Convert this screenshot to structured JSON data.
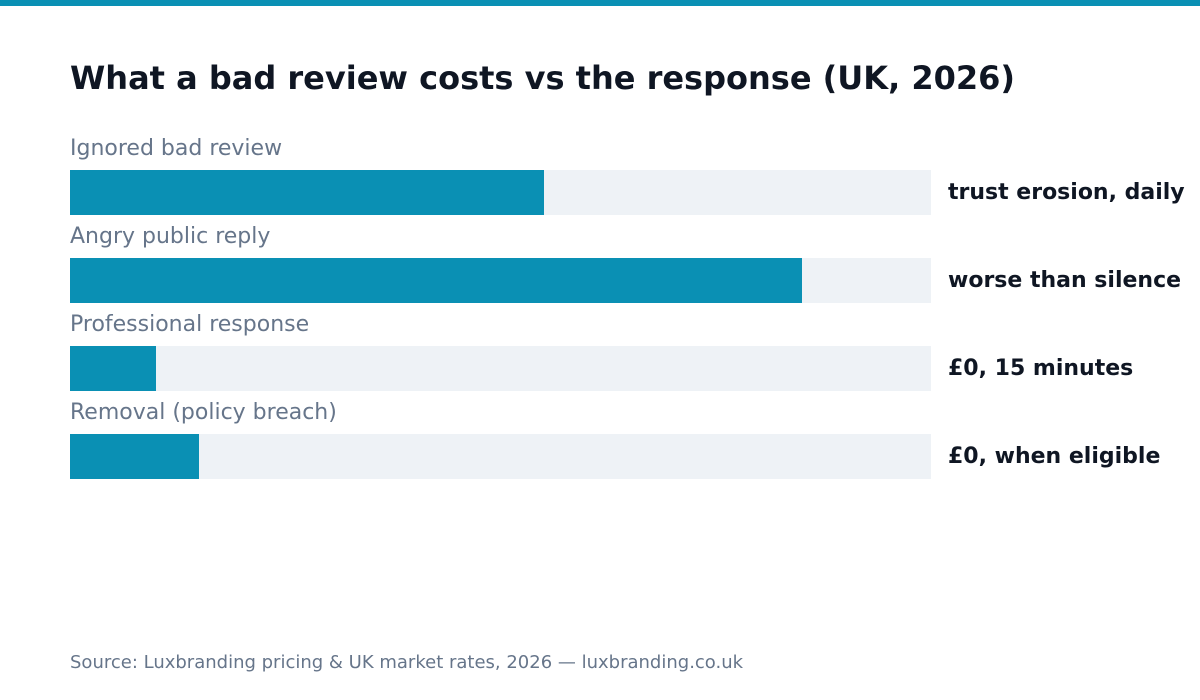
{
  "colors": {
    "accent": "#0a90b4",
    "track": "#eef2f6",
    "title": "#0f1623",
    "muted": "#66758a"
  },
  "chart_data": {
    "type": "bar",
    "orientation": "horizontal",
    "title": "What a bad review costs vs the response (UK, 2026)",
    "xlim": [
      0,
      100
    ],
    "grid": false,
    "legend": "none",
    "categories": [
      "Ignored bad review",
      "Angry public reply",
      "Professional response",
      "Removal (policy breach)"
    ],
    "values": [
      55,
      85,
      10,
      15
    ],
    "value_labels": [
      "trust erosion, daily",
      "worse than silence",
      "£0, 15 minutes",
      "£0, when eligible"
    ],
    "source": "Source: Luxbranding pricing & UK market rates, 2026 — luxbranding.co.uk"
  }
}
